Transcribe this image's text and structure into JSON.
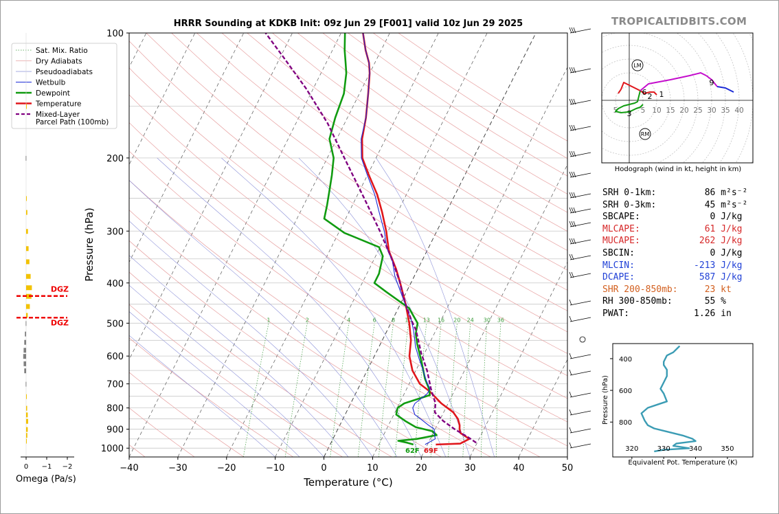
{
  "brand": "TROPICALTIDBITS.COM",
  "omega_label": "Omega (Pa/s)",
  "chart_data": [
    {
      "type": "line",
      "title": "HRRR Sounding at KDKB Init: 09z Jun 29 [F001] valid 10z Jun 29 2025",
      "xlabel": "Temperature (°C)",
      "ylabel": "Pressure (hPa)",
      "xlim": [
        -40,
        50
      ],
      "ylim": [
        1050,
        100
      ],
      "y_scale": "log",
      "x_ticks": [
        "−40",
        "−30",
        "−20",
        "−10",
        "0",
        "10",
        "20",
        "30",
        "40",
        "50"
      ],
      "y_ticks": [
        "100",
        "200",
        "300",
        "400",
        "500",
        "600",
        "700",
        "800",
        "900",
        "1000"
      ],
      "legend": {
        "placement": "top-left",
        "entries": [
          "Sat. Mix. Ratio",
          "Dry Adiabats",
          "Pseudoadiabats",
          "Wetbulb",
          "Dewpoint",
          "Temperature",
          "Mixed-Layer\nParcel Path (100mb)"
        ]
      },
      "mixing_ratio_labels": [
        "1",
        "2",
        "4",
        "6",
        "8",
        "10",
        "13",
        "16",
        "20",
        "24",
        "30",
        "36"
      ],
      "surface_labels": {
        "dewpoint": "62F",
        "temperature": "69F"
      },
      "colors": {
        "temperature": "#e0161b",
        "dewpoint": "#109b10",
        "wetbulb": "#1c2bd6",
        "parcel": "#800080"
      },
      "series": [
        {
          "name": "Temperature",
          "points": [
            [
              21.7,
              980
            ],
            [
              26.6,
              975
            ],
            [
              28,
              950
            ],
            [
              25.6,
              920
            ],
            [
              25,
              900
            ],
            [
              24.6,
              880
            ],
            [
              23.6,
              850
            ],
            [
              22,
              820
            ],
            [
              18.6,
              780
            ],
            [
              15,
              730
            ],
            [
              12.2,
              700
            ],
            [
              9.3,
              650
            ],
            [
              7.2,
              600
            ],
            [
              5.9,
              550
            ],
            [
              3.8,
              500
            ],
            [
              1.1,
              450
            ],
            [
              -2.2,
              400
            ],
            [
              -4.5,
              370
            ],
            [
              -7.8,
              335
            ],
            [
              -10.4,
              300
            ],
            [
              -13.2,
              270
            ],
            [
              -16,
              245
            ],
            [
              -19.7,
              220
            ],
            [
              -22.8,
              200
            ],
            [
              -24.8,
              180
            ],
            [
              -26.2,
              160
            ],
            [
              -28.2,
              140
            ],
            [
              -30,
              125
            ],
            [
              -31.2,
              118
            ],
            [
              -33.2,
              110
            ],
            [
              -35.5,
              100
            ]
          ]
        },
        {
          "name": "Dewpoint",
          "points": [
            [
              17.1,
              980
            ],
            [
              15.6,
              970
            ],
            [
              13.6,
              960
            ],
            [
              17.3,
              950
            ],
            [
              20.9,
              930
            ],
            [
              19.6,
              910
            ],
            [
              15.8,
              890
            ],
            [
              13,
              860
            ],
            [
              10.5,
              830
            ],
            [
              10.1,
              800
            ],
            [
              11,
              780
            ],
            [
              15.4,
              745
            ],
            [
              14.6,
              720
            ],
            [
              12.7,
              680
            ],
            [
              10.3,
              620
            ],
            [
              7.5,
              560
            ],
            [
              6.2,
              530
            ],
            [
              5.5,
              500
            ],
            [
              2.2,
              460
            ],
            [
              -4.2,
              420
            ],
            [
              -7.5,
              400
            ],
            [
              -7.5,
              380
            ],
            [
              -8.5,
              345
            ],
            [
              -10.2,
              328
            ],
            [
              -18.8,
              303
            ],
            [
              -24.4,
              280
            ],
            [
              -25.2,
              260
            ],
            [
              -26.2,
              240
            ],
            [
              -27.3,
              220
            ],
            [
              -28.7,
              200
            ],
            [
              -31.5,
              180
            ],
            [
              -32.5,
              160
            ],
            [
              -33.2,
              140
            ],
            [
              -34.8,
              125
            ],
            [
              -36,
              118
            ],
            [
              -37.5,
              110
            ],
            [
              -39.2,
              100
            ]
          ]
        },
        {
          "name": "Wetbulb",
          "points": [
            [
              19.5,
              980
            ],
            [
              21,
              950
            ],
            [
              20.2,
              920
            ],
            [
              19.8,
              900
            ],
            [
              18.2,
              880
            ],
            [
              16.3,
              855
            ],
            [
              14.3,
              830
            ],
            [
              13.2,
              800
            ],
            [
              13.2,
              780
            ],
            [
              14.7,
              740
            ],
            [
              14.8,
              720
            ],
            [
              13.3,
              690
            ],
            [
              11.5,
              650
            ],
            [
              9.5,
              610
            ],
            [
              7.5,
              570
            ],
            [
              5.4,
              520
            ],
            [
              3.8,
              490
            ],
            [
              1,
              450
            ],
            [
              -2,
              410
            ],
            [
              -4,
              385
            ],
            [
              -6,
              355
            ],
            [
              -8.5,
              330
            ],
            [
              -10.8,
              300
            ],
            [
              -13.8,
              270
            ],
            [
              -16.5,
              245
            ],
            [
              -20,
              220
            ],
            [
              -23,
              200
            ],
            [
              -25,
              180
            ],
            [
              -26.2,
              160
            ],
            [
              -28.2,
              140
            ],
            [
              -30,
              125
            ],
            [
              -31.2,
              118
            ],
            [
              -33.2,
              110
            ],
            [
              -35.5,
              100
            ]
          ]
        },
        {
          "name": "Mixed-Layer Parcel Path (100mb)",
          "points": [
            [
              29.8,
              970
            ],
            [
              27.5,
              940
            ],
            [
              24,
              900
            ],
            [
              20.8,
              860
            ],
            [
              18.2,
              820
            ],
            [
              17.4,
              780
            ],
            [
              15,
              720
            ],
            [
              12.3,
              650
            ],
            [
              9.3,
              590
            ],
            [
              5.9,
              520
            ],
            [
              3.8,
              490
            ],
            [
              0.4,
              440
            ],
            [
              -2.6,
              395
            ],
            [
              -6.6,
              348
            ],
            [
              -11.7,
              300
            ],
            [
              -18.3,
              250
            ],
            [
              -26.5,
              200
            ],
            [
              -33.5,
              165
            ],
            [
              -41.5,
              136
            ],
            [
              -49.5,
              114
            ],
            [
              -55.5,
              100
            ]
          ]
        }
      ]
    },
    {
      "type": "scatter",
      "title": "",
      "caption": "Hodograph (wind in kt, height in km)",
      "ring_labels": [
        "5",
        "5",
        "10",
        "15",
        "20",
        "25",
        "30",
        "35",
        "40"
      ],
      "markers": [
        "LM",
        "RM"
      ],
      "height_labels": [
        "1",
        "2",
        "3",
        "6",
        "9"
      ],
      "colors": {
        "0-1km": "#e0161b",
        "1-3km": "#109b10",
        "3-6km": "#c40ccc",
        "6-9km": "#c40ccc",
        "9+km": "#1c2bd6"
      },
      "segments": [
        {
          "name": "0-1km",
          "points": [
            [
              10,
              2
            ],
            [
              9,
              3
            ],
            [
              7.5,
              3
            ],
            [
              5.5,
              2.5
            ],
            [
              4,
              3.5
            ],
            [
              -2,
              6.5
            ],
            [
              -3,
              4
            ],
            [
              -4,
              2.5
            ]
          ]
        },
        {
          "name": "1-3km",
          "points": [
            [
              4,
              3.5
            ],
            [
              3,
              -0.5
            ],
            [
              2,
              -1
            ],
            [
              -2,
              -2
            ],
            [
              -4,
              -3
            ],
            [
              -5,
              -4
            ],
            [
              -3,
              -4.5
            ],
            [
              0,
              -4.2
            ],
            [
              2.5,
              -3
            ],
            [
              4,
              -2.5
            ],
            [
              5,
              -1.5
            ]
          ]
        },
        {
          "name": "3-6km",
          "points": [
            [
              4,
              3.5
            ],
            [
              7,
              6
            ],
            [
              15,
              7.5
            ],
            [
              22,
              9
            ],
            [
              26,
              10
            ],
            [
              28,
              9
            ]
          ]
        },
        {
          "name": "6-9km",
          "points": [
            [
              28,
              9
            ],
            [
              30,
              7.5
            ],
            [
              32,
              5
            ]
          ]
        },
        {
          "name": "9+km",
          "points": [
            [
              32,
              5
            ],
            [
              35,
              4.5
            ],
            [
              38,
              3
            ]
          ]
        }
      ]
    },
    {
      "type": "line",
      "title": "",
      "xlabel": "Equivalent Pot. Temperature (K)",
      "ylabel": "Pressure (hPa)",
      "xlim": [
        314,
        358
      ],
      "ylim": [
        1020,
        305
      ],
      "x_ticks": [
        "320",
        "330",
        "340",
        "350"
      ],
      "y_ticks": [
        "400",
        "600",
        "800"
      ],
      "color": "#3b9cb4",
      "series": [
        {
          "name": "",
          "points": [
            [
              335,
              320
            ],
            [
              334,
              340
            ],
            [
              333,
              360
            ],
            [
              331,
              380
            ],
            [
              330,
              420
            ],
            [
              330,
              440
            ],
            [
              331,
              470
            ],
            [
              331,
              510
            ],
            [
              330,
              550
            ],
            [
              329,
              590
            ],
            [
              330,
              620
            ],
            [
              331,
              670
            ],
            [
              328,
              690
            ],
            [
              325,
              710
            ],
            [
              323,
              745
            ],
            [
              324,
              790
            ],
            [
              325,
              820
            ],
            [
              327,
              840
            ],
            [
              331,
              860
            ],
            [
              336,
              885
            ],
            [
              339,
              905
            ],
            [
              340,
              920
            ],
            [
              334,
              935
            ],
            [
              333,
              950
            ],
            [
              338,
              965
            ],
            [
              330,
              975
            ],
            [
              327,
              985
            ]
          ]
        }
      ]
    },
    {
      "type": "bar",
      "title": "",
      "xlabel": "Omega (Pa/s)",
      "xlim": [
        0.2,
        -2.4
      ],
      "x_ticks": [
        "0",
        "−1",
        "−2"
      ],
      "labels": [
        "DGZ",
        "DGZ"
      ],
      "dgz_levels": [
        430,
        485
      ],
      "values": [
        [
          -0.02,
          150
        ],
        [
          0.02,
          200
        ],
        [
          -0.02,
          250
        ],
        [
          -0.06,
          270
        ],
        [
          -0.09,
          300
        ],
        [
          -0.12,
          330
        ],
        [
          -0.16,
          355
        ],
        [
          -0.22,
          385
        ],
        [
          -0.28,
          410
        ],
        [
          -0.26,
          430
        ],
        [
          -0.18,
          455
        ],
        [
          -0.08,
          478
        ],
        [
          0.02,
          500
        ],
        [
          0.06,
          530
        ],
        [
          0.09,
          555
        ],
        [
          0.12,
          580
        ],
        [
          0.14,
          600
        ],
        [
          0.12,
          625
        ],
        [
          0.09,
          650
        ],
        [
          0.02,
          700
        ],
        [
          -0.02,
          750
        ],
        [
          -0.05,
          800
        ],
        [
          -0.08,
          830
        ],
        [
          -0.1,
          860
        ],
        [
          -0.08,
          900
        ],
        [
          -0.06,
          930
        ],
        [
          -0.03,
          960
        ]
      ]
    }
  ],
  "stats": [
    {
      "label": "SRH 0-1km:",
      "value": "86",
      "unit": "m²s⁻²",
      "color": "#000000"
    },
    {
      "label": "SRH 0-3km:",
      "value": "45",
      "unit": "m²s⁻²",
      "color": "#000000"
    },
    {
      "label": "SBCAPE:",
      "value": "0",
      "unit": "J/kg",
      "color": "#000000"
    },
    {
      "label": "MLCAPE:",
      "value": "61",
      "unit": "J/kg",
      "color": "#d62728"
    },
    {
      "label": "MUCAPE:",
      "value": "262",
      "unit": "J/kg",
      "color": "#d62728"
    },
    {
      "label": "SBCIN:",
      "value": "0",
      "unit": "J/kg",
      "color": "#000000"
    },
    {
      "label": "MLCIN:",
      "value": "-213",
      "unit": "J/kg",
      "color": "#1f3fd6"
    },
    {
      "label": "DCAPE:",
      "value": "587",
      "unit": "J/kg",
      "color": "#1f3fd6"
    },
    {
      "label": "SHR 200-850mb:",
      "value": "23",
      "unit": "kt",
      "color": "#d25f1e"
    },
    {
      "label": "RH 300-850mb:",
      "value": "55",
      "unit": "%",
      "color": "#000000"
    },
    {
      "label": "PWAT:",
      "value": "1.26",
      "unit": "in",
      "color": "#000000"
    }
  ]
}
